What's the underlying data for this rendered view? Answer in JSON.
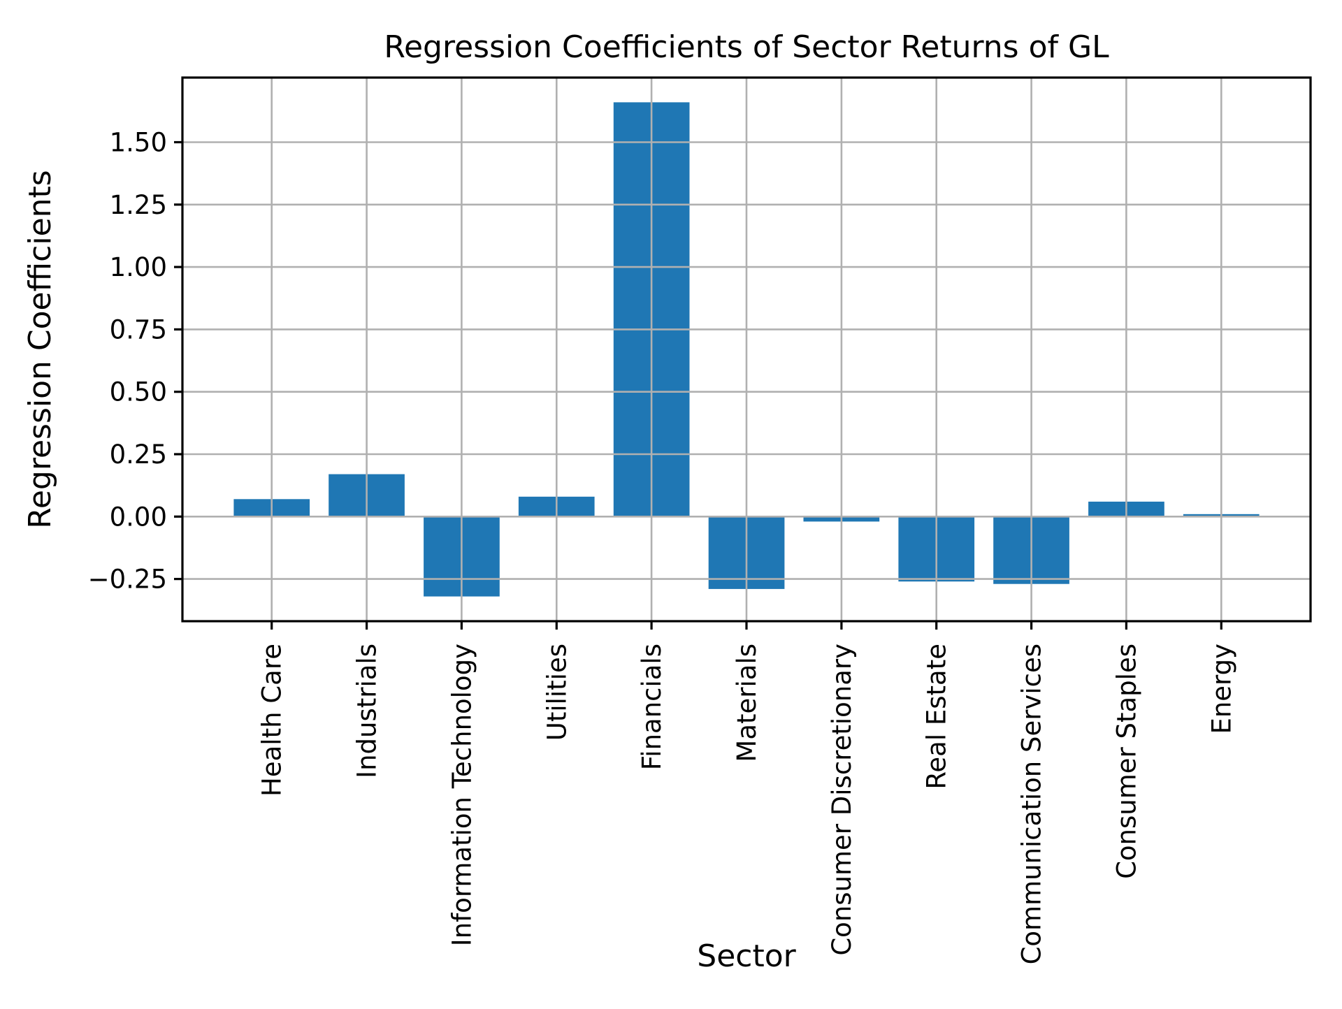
{
  "chart_data": {
    "type": "bar",
    "title": "Regression Coefficients of Sector Returns of GL",
    "xlabel": "Sector",
    "ylabel": "Regression Coefficients",
    "categories": [
      "Health Care",
      "Industrials",
      "Information Technology",
      "Utilities",
      "Financials",
      "Materials",
      "Consumer Discretionary",
      "Real Estate",
      "Communication Services",
      "Consumer Staples",
      "Energy"
    ],
    "values": [
      0.07,
      0.17,
      -0.32,
      0.08,
      1.66,
      -0.29,
      -0.02,
      -0.26,
      -0.27,
      0.06,
      0.01
    ],
    "ylim": [
      -0.419,
      1.759
    ],
    "yticks": [
      -0.25,
      0.0,
      0.25,
      0.5,
      0.75,
      1.0,
      1.25,
      1.5
    ],
    "ytick_labels": [
      "−0.25",
      "0.00",
      "0.25",
      "0.50",
      "0.75",
      "1.00",
      "1.25",
      "1.50"
    ],
    "grid": true,
    "grid_on_top_of_bars": true,
    "legend_position": "none",
    "bar_color": "#1f77b4",
    "grid_color": "#b0b0b0",
    "spine_color": "#000000",
    "background_color": "#ffffff",
    "bar_width_fraction": 0.8,
    "x_margin_units": 0.54,
    "x_tick_rotation_deg": 90
  }
}
